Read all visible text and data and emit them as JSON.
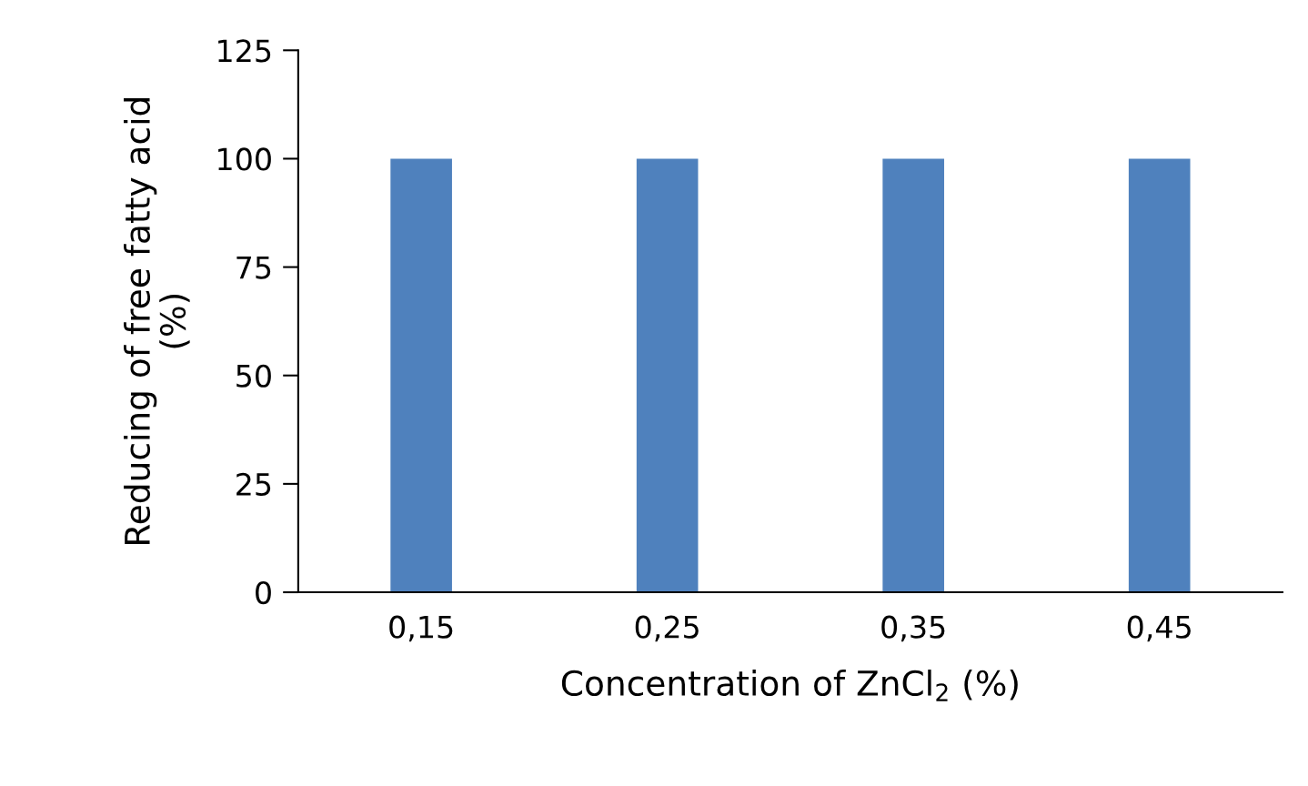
{
  "chart_data": {
    "type": "bar",
    "xlabel": "Concentration of ZnCl$_{2}$ (%)",
    "ylabel": "Reducing of free fatty acid\n(%)",
    "categories": [
      "0,15",
      "0,25",
      "0,35",
      "0,45"
    ],
    "values": [
      100,
      100,
      100,
      100
    ],
    "color": "#4f81bd",
    "ylim": [
      0,
      125
    ],
    "yticks": [
      0,
      25,
      50,
      75,
      100,
      125
    ],
    "grid": false,
    "legend": false
  }
}
